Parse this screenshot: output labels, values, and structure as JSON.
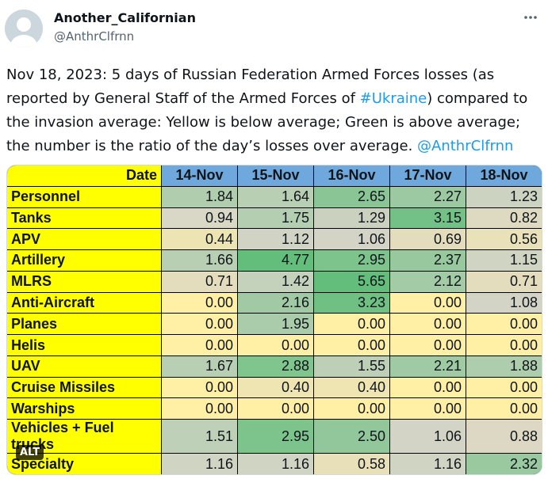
{
  "tweet": {
    "author_name": "Another_Californian",
    "author_handle": "@AnthrClfrnn",
    "text": [
      "Nov 18, 2023: 5 days of Russian Federation Armed Forces losses (as reported by General Staff of the Armed Forces of ",
      "#Ukraine",
      ") compared to the invasion average: Yellow is below average; Green is above average; the number is the ratio of the day’s losses over average. ",
      "@AnthrClfrnn"
    ],
    "alt_badge": "ALT"
  },
  "table": {
    "header": [
      "Date",
      "14-Nov",
      "15-Nov",
      "16-Nov",
      "17-Nov",
      "18-Nov"
    ],
    "rows": [
      [
        "Personnel",
        "1.84",
        "1.64",
        "2.65",
        "2.27",
        "1.23"
      ],
      [
        "Tanks",
        "0.94",
        "1.75",
        "1.29",
        "3.15",
        "0.82"
      ],
      [
        "APV",
        "0.44",
        "1.12",
        "1.06",
        "0.69",
        "0.56"
      ],
      [
        "Artillery",
        "1.66",
        "4.77",
        "2.95",
        "2.37",
        "1.15"
      ],
      [
        "MLRS",
        "0.71",
        "1.42",
        "5.65",
        "2.12",
        "0.71"
      ],
      [
        "Anti-Aircraft",
        "0.00",
        "2.16",
        "3.23",
        "0.00",
        "1.08"
      ],
      [
        "Planes",
        "0.00",
        "1.95",
        "0.00",
        "0.00",
        "0.00"
      ],
      [
        "Helis",
        "0.00",
        "0.00",
        "0.00",
        "0.00",
        "0.00"
      ],
      [
        "UAV",
        "1.67",
        "2.88",
        "1.55",
        "2.21",
        "1.88"
      ],
      [
        "Cruise Missiles",
        "0.00",
        "0.40",
        "0.40",
        "0.00",
        "0.00"
      ],
      [
        "Warships",
        "0.00",
        "0.00",
        "0.00",
        "0.00",
        "0.00"
      ],
      [
        "Vehicles + Fuel trucks",
        "1.51",
        "2.95",
        "2.50",
        "1.06",
        "0.88"
      ],
      [
        "Specialty",
        "1.16",
        "1.16",
        "0.58",
        "1.16",
        "2.32"
      ]
    ]
  }
}
